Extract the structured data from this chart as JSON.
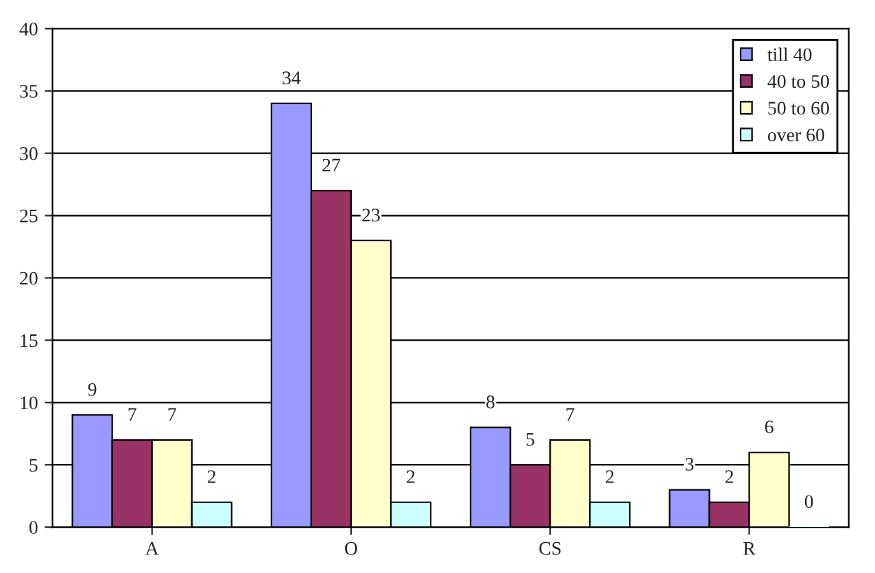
{
  "chart_data": {
    "type": "bar",
    "categories": [
      "A",
      "O",
      "CS",
      "R"
    ],
    "series": [
      {
        "name": "till 40",
        "color": "#9999ff",
        "values": [
          9,
          34,
          8,
          3
        ]
      },
      {
        "name": "40 to 50",
        "color": "#993366",
        "values": [
          7,
          27,
          5,
          2
        ]
      },
      {
        "name": "50 to 60",
        "color": "#ffffcc",
        "values": [
          7,
          23,
          7,
          6
        ]
      },
      {
        "name": "over 60",
        "color": "#ccffff",
        "values": [
          2,
          2,
          2,
          0
        ]
      }
    ],
    "ylim": [
      0,
      40
    ],
    "yticks": [
      0,
      5,
      10,
      15,
      20,
      25,
      30,
      35,
      40
    ],
    "grid": "y",
    "legend": "top right",
    "data_labels": true
  }
}
